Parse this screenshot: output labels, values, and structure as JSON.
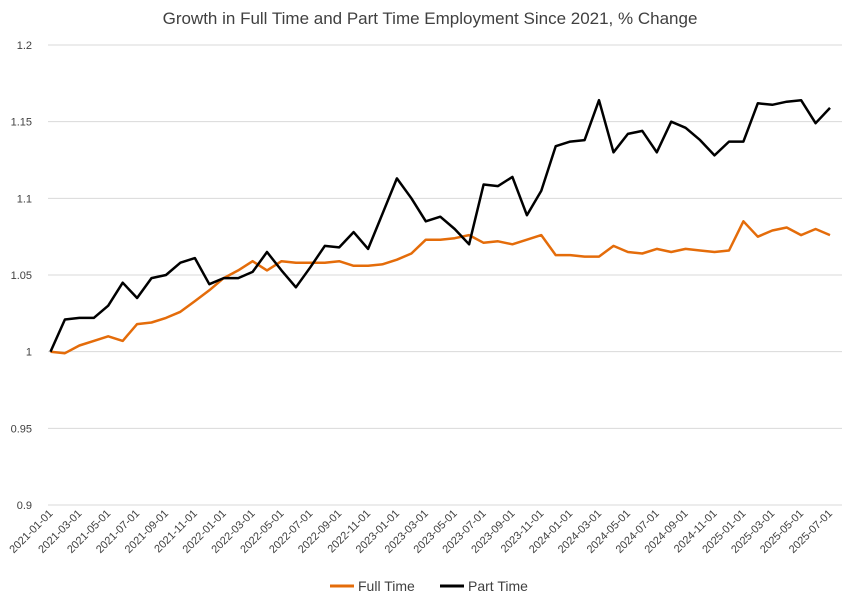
{
  "chart_data": {
    "type": "line",
    "title": "Growth in Full Time and Part Time Employment Since 2021, % Change",
    "xlabel": "",
    "ylabel": "",
    "ylim": [
      0.9,
      1.2
    ],
    "yticks": [
      "0.9",
      "0.95",
      "1",
      "1.05",
      "1.1",
      "1.15",
      "1.2"
    ],
    "grid": true,
    "legend_position": "bottom",
    "x": [
      "2021-01-01",
      "2021-02-01",
      "2021-03-01",
      "2021-04-01",
      "2021-05-01",
      "2021-06-01",
      "2021-07-01",
      "2021-08-01",
      "2021-09-01",
      "2021-10-01",
      "2021-11-01",
      "2021-12-01",
      "2022-01-01",
      "2022-02-01",
      "2022-03-01",
      "2022-04-01",
      "2022-05-01",
      "2022-06-01",
      "2022-07-01",
      "2022-08-01",
      "2022-09-01",
      "2022-10-01",
      "2022-11-01",
      "2022-12-01",
      "2023-01-01",
      "2023-02-01",
      "2023-03-01",
      "2023-04-01",
      "2023-05-01",
      "2023-06-01",
      "2023-07-01",
      "2023-08-01",
      "2023-09-01",
      "2023-10-01",
      "2023-11-01",
      "2023-12-01",
      "2024-01-01",
      "2024-02-01",
      "2024-03-01",
      "2024-04-01",
      "2024-05-01",
      "2024-06-01",
      "2024-07-01",
      "2024-08-01",
      "2024-09-01",
      "2024-10-01",
      "2024-11-01",
      "2024-12-01",
      "2025-01-01",
      "2025-02-01",
      "2025-03-01",
      "2025-04-01",
      "2025-05-01",
      "2025-06-01",
      "2025-07-01"
    ],
    "xtick_labels": [
      "2021-01-01",
      "2021-03-01",
      "2021-05-01",
      "2021-07-01",
      "2021-09-01",
      "2021-11-01",
      "2022-01-01",
      "2022-03-01",
      "2022-05-01",
      "2022-07-01",
      "2022-09-01",
      "2022-11-01",
      "2023-01-01",
      "2023-03-01",
      "2023-05-01",
      "2023-07-01",
      "2023-09-01",
      "2023-11-01",
      "2024-01-01",
      "2024-03-01",
      "2024-05-01",
      "2024-07-01",
      "2024-09-01",
      "2024-11-01",
      "2025-01-01",
      "2025-03-01",
      "2025-05-01",
      "2025-07-01"
    ],
    "series": [
      {
        "name": "Full Time",
        "color": "#e46c0a",
        "values": [
          1.0,
          0.999,
          1.004,
          1.007,
          1.01,
          1.007,
          1.018,
          1.019,
          1.022,
          1.026,
          1.033,
          1.04,
          1.048,
          1.053,
          1.059,
          1.053,
          1.059,
          1.058,
          1.058,
          1.058,
          1.059,
          1.056,
          1.056,
          1.057,
          1.06,
          1.064,
          1.073,
          1.073,
          1.074,
          1.076,
          1.071,
          1.072,
          1.07,
          1.073,
          1.076,
          1.063,
          1.063,
          1.062,
          1.062,
          1.069,
          1.065,
          1.064,
          1.067,
          1.065,
          1.067,
          1.066,
          1.065,
          1.066,
          1.085,
          1.075,
          1.079,
          1.081,
          1.076,
          1.08,
          1.076
        ]
      },
      {
        "name": "Part Time",
        "color": "#000000",
        "values": [
          1.0,
          1.021,
          1.022,
          1.022,
          1.03,
          1.045,
          1.035,
          1.048,
          1.05,
          1.058,
          1.061,
          1.044,
          1.048,
          1.048,
          1.052,
          1.065,
          1.053,
          1.042,
          1.055,
          1.069,
          1.068,
          1.078,
          1.067,
          1.09,
          1.113,
          1.1,
          1.085,
          1.088,
          1.08,
          1.07,
          1.109,
          1.108,
          1.114,
          1.089,
          1.105,
          1.134,
          1.137,
          1.138,
          1.164,
          1.13,
          1.142,
          1.144,
          1.13,
          1.15,
          1.146,
          1.138,
          1.128,
          1.137,
          1.137,
          1.162,
          1.161,
          1.163,
          1.164,
          1.149,
          1.159
        ]
      }
    ]
  }
}
